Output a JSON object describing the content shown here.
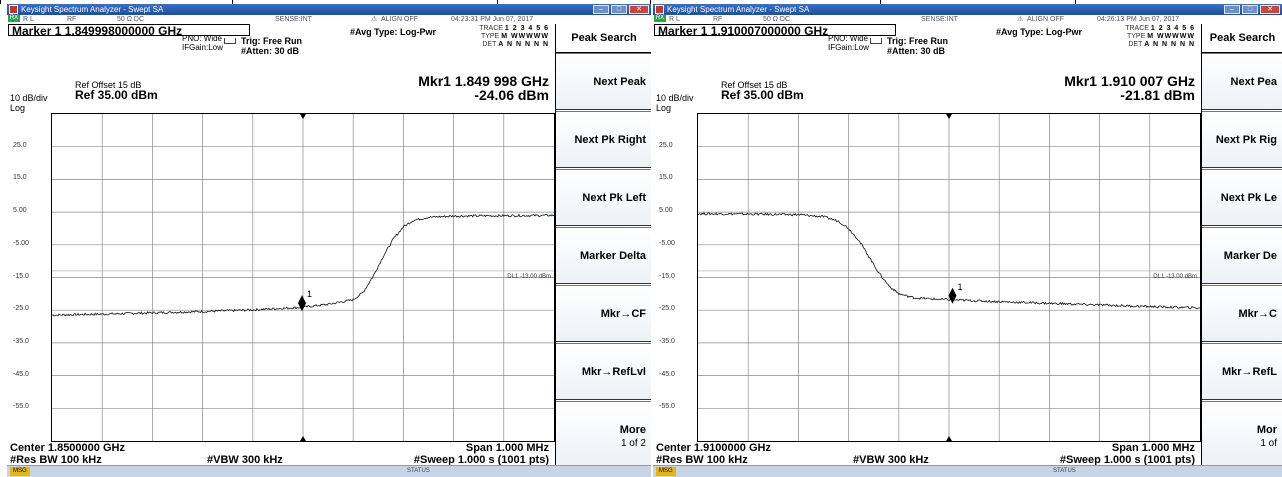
{
  "panels": [
    {
      "window_title": "Keysight Spectrum Analyzer - Swept SA",
      "status_row": [
        "R L",
        "RF",
        "50 Ω  DC",
        "SENSE:INT",
        "ALIGN OFF",
        "04:23:31 PM Jun 07, 2017"
      ],
      "status_badge": "RX",
      "marker_field": "Marker 1 1.849998000000 GHz",
      "pno": "PNO: Wide",
      "ifgain": "IFGain:Low",
      "trig": "Trig: Free Run",
      "atten": "#Atten: 30 dB",
      "avg_type": "#Avg Type: Log-Pwr",
      "trace_label": "TRACE",
      "trace_nums": "1 2 3 4 5 6",
      "type_label": "TYPE",
      "type_vals": "M WWWWW",
      "det_label": "DET",
      "det_vals": "A N N N N N",
      "mkr_freq": "Mkr1 1.849 998 GHz",
      "mkr_amp": "-24.06 dBm",
      "ref_offset": "Ref Offset 15 dB",
      "scale": "10 dB/div",
      "ref_level": "Ref 35.00 dBm",
      "log_label": "Log",
      "dl_label": "DL1 -13.00 dBm",
      "marker_num": "1",
      "center": "Center 1.8500000 GHz",
      "span": "Span 1.000 MHz",
      "res_bw": "#Res BW 100 kHz",
      "vbw": "#VBW 300 kHz",
      "sweep": "#Sweep  1.000 s (1001 pts)",
      "msg": "MSG",
      "status": "STATUS",
      "sidebar": {
        "title": "Peak Search",
        "keys": [
          "Next Peak",
          "Next Pk Right",
          "Next Pk Left",
          "Marker Delta",
          "Mkr→CF",
          "Mkr→RefLvl",
          "More"
        ],
        "more_sub": "1 of 2"
      },
      "chart_data": {
        "type": "line",
        "xlabel": "",
        "ylabel": "",
        "x_range_hz": [
          1849500000,
          1850500000
        ],
        "ylim": [
          -65,
          35
        ],
        "yticks": [
          "25.0",
          "15.0",
          "5.00",
          "-5.00",
          "-15.0",
          "-25.0",
          "-35.0",
          "-45.0",
          "-55.0"
        ],
        "grid": true,
        "display_line_dbm": -13,
        "marker": {
          "freq_ghz": 1.849998,
          "amp_dbm": -24.06
        },
        "series": [
          {
            "x_frac": [
              0,
              0.1,
              0.2,
              0.3,
              0.4,
              0.5,
              0.55,
              0.6,
              0.62,
              0.64,
              0.66,
              0.68,
              0.7,
              0.72,
              0.75,
              0.8,
              0.9,
              1.0
            ],
            "values": [
              -26.5,
              -26.2,
              -25.8,
              -25.4,
              -24.9,
              -24.1,
              -23.2,
              -21.8,
              -19.5,
              -14.5,
              -8.5,
              -3.2,
              0.5,
              2.5,
              3.4,
              3.8,
              3.9,
              4.0
            ]
          }
        ]
      }
    },
    {
      "window_title": "Keysight Spectrum Analyzer - Swept SA",
      "status_row": [
        "R L",
        "RF",
        "50 Ω  DC",
        "SENSE:INT",
        "ALIGN OFF",
        "04:26:13 PM Jun 07, 2017"
      ],
      "status_badge": "RX",
      "marker_field": "Marker 1 1.910007000000 GHz",
      "pno": "PNO: Wide",
      "ifgain": "IFGain:Low",
      "trig": "Trig: Free Run",
      "atten": "#Atten: 30 dB",
      "avg_type": "#Avg Type: Log-Pwr",
      "trace_label": "TRACE",
      "trace_nums": "1 2 3 4 5 6",
      "type_label": "TYPE",
      "type_vals": "M WWWWW",
      "det_label": "DET",
      "det_vals": "A N N N N N",
      "mkr_freq": "Mkr1 1.910 007 GHz",
      "mkr_amp": "-21.81 dBm",
      "ref_offset": "Ref Offset 15 dB",
      "scale": "10 dB/div",
      "ref_level": "Ref 35.00 dBm",
      "log_label": "Log",
      "dl_label": "DL1 -13.00 dBm",
      "marker_num": "1",
      "center": "Center 1.9100000 GHz",
      "span": "Span 1.000 MHz",
      "res_bw": "#Res BW 100 kHz",
      "vbw": "#VBW 300 kHz",
      "sweep": "#Sweep  1.000 s (1001 pts)",
      "msg": "MSG",
      "status": "STATUS",
      "sidebar": {
        "title": "Peak Search",
        "keys": [
          "Next Pea",
          "Next Pk Rig",
          "Next Pk Le",
          "Marker De",
          "Mkr→C",
          "Mkr→RefL",
          "Mor"
        ],
        "more_sub": "1 of"
      },
      "chart_data": {
        "type": "line",
        "xlabel": "",
        "ylabel": "",
        "x_range_hz": [
          1909500000,
          1910500000
        ],
        "ylim": [
          -65,
          35
        ],
        "yticks": [
          "25.0",
          "15.0",
          "5.00",
          "-5.00",
          "-15.0",
          "-25.0",
          "-35.0",
          "-45.0",
          "-55.0"
        ],
        "grid": true,
        "display_line_dbm": -13,
        "marker": {
          "freq_ghz": 1.910007,
          "amp_dbm": -21.81
        },
        "series": [
          {
            "x_frac": [
              0,
              0.1,
              0.2,
              0.25,
              0.28,
              0.3,
              0.32,
              0.34,
              0.36,
              0.38,
              0.4,
              0.43,
              0.47,
              0.5,
              0.6,
              0.7,
              0.8,
              0.9,
              1.0
            ],
            "values": [
              4.5,
              4.4,
              4.2,
              3.6,
              2.2,
              0,
              -3.5,
              -8.5,
              -13.5,
              -17.5,
              -20.0,
              -21.2,
              -21.6,
              -21.8,
              -22.4,
              -22.9,
              -23.4,
              -23.9,
              -24.3
            ]
          }
        ]
      }
    }
  ]
}
